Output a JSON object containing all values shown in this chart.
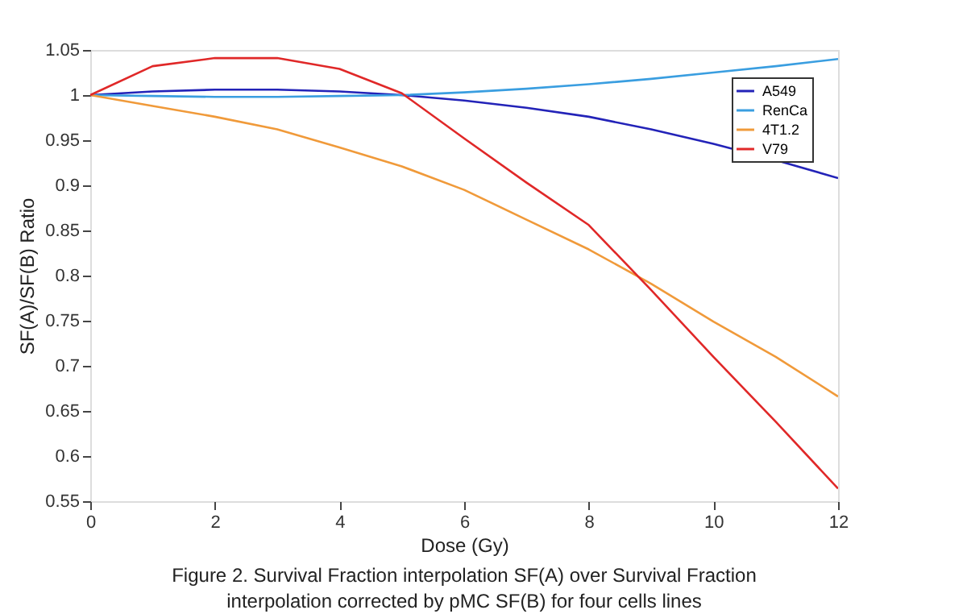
{
  "chart_data": {
    "type": "line",
    "xlabel": "Dose (Gy)",
    "ylabel": "SF(A)/SF(B) Ratio",
    "x": [
      0,
      1,
      2,
      3,
      4,
      5,
      6,
      7,
      8,
      9,
      10,
      11,
      12
    ],
    "series": [
      {
        "name": "A549",
        "color": "#2323b8",
        "values": [
          1.0,
          1.004,
          1.006,
          1.006,
          1.004,
          1.0,
          0.994,
          0.986,
          0.976,
          0.962,
          0.946,
          0.928,
          0.908
        ]
      },
      {
        "name": "RenCa",
        "color": "#3a9ee0",
        "values": [
          1.0,
          0.999,
          0.998,
          0.998,
          0.999,
          1.0,
          1.003,
          1.007,
          1.012,
          1.018,
          1.025,
          1.032,
          1.04
        ]
      },
      {
        "name": "4T1.2",
        "color": "#f09a3a",
        "values": [
          1.0,
          0.988,
          0.976,
          0.962,
          0.942,
          0.921,
          0.895,
          0.862,
          0.829,
          0.791,
          0.749,
          0.71,
          0.666
        ]
      },
      {
        "name": "V79",
        "color": "#e02828",
        "values": [
          1.0,
          1.032,
          1.041,
          1.041,
          1.029,
          1.002,
          0.952,
          0.903,
          0.856,
          0.784,
          0.71,
          0.638,
          0.564
        ]
      }
    ],
    "xlim": [
      0,
      12
    ],
    "xticks": [
      0,
      2,
      4,
      6,
      8,
      10,
      12
    ],
    "ylim": [
      0.55,
      1.05
    ],
    "yticks": [
      0.55,
      0.6,
      0.65,
      0.7,
      0.75,
      0.8,
      0.85,
      0.9,
      0.95,
      1,
      1.05
    ],
    "grid": false,
    "legend": "top right",
    "marker": "none",
    "line_style": "solid",
    "annotations": [
      "Figure 2. Survival Fraction interpolation SF(A) over Survival Fraction",
      "interpolation corrected by pMC SF(B) for four cells lines"
    ]
  }
}
